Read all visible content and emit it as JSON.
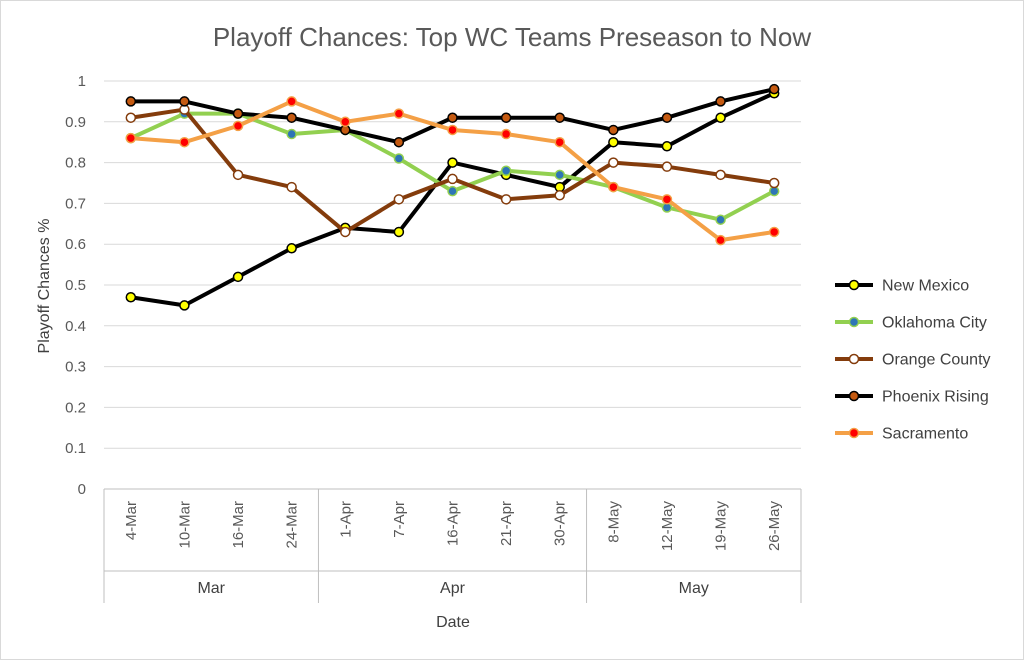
{
  "chart_data": {
    "type": "line",
    "title": "Playoff Chances: Top WC Teams Preseason to Now",
    "xlabel": "Date",
    "ylabel": "Playoff Chances %",
    "ylim": [
      0,
      1
    ],
    "yticks": [
      "0",
      "0.1",
      "0.2",
      "0.3",
      "0.4",
      "0.5",
      "0.6",
      "0.7",
      "0.8",
      "0.9",
      "1"
    ],
    "categories": [
      "4-Mar",
      "10-Mar",
      "16-Mar",
      "24-Mar",
      "1-Apr",
      "7-Apr",
      "16-Apr",
      "21-Apr",
      "30-Apr",
      "8-May",
      "12-May",
      "19-May",
      "26-May"
    ],
    "groups": [
      {
        "label": "Mar",
        "count": 4
      },
      {
        "label": "Apr",
        "count": 5
      },
      {
        "label": "May",
        "count": 4
      }
    ],
    "grid": true,
    "legend_position": "right",
    "series": [
      {
        "name": "New Mexico",
        "color": "#000000",
        "marker_fill": "#ffff00",
        "marker_stroke": "#000000",
        "values": [
          0.47,
          0.45,
          0.52,
          0.59,
          0.64,
          0.63,
          0.8,
          0.77,
          0.74,
          0.85,
          0.84,
          0.91,
          0.97
        ]
      },
      {
        "name": "Oklahoma City",
        "color": "#92d050",
        "marker_fill": "#2e75b6",
        "marker_stroke": "#92d050",
        "values": [
          0.86,
          0.92,
          0.92,
          0.87,
          0.88,
          0.81,
          0.73,
          0.78,
          0.77,
          0.74,
          0.69,
          0.66,
          0.73
        ]
      },
      {
        "name": "Orange County",
        "color": "#843c0c",
        "marker_fill": "#ffffff",
        "marker_stroke": "#843c0c",
        "values": [
          0.91,
          0.93,
          0.77,
          0.74,
          0.63,
          0.71,
          0.76,
          0.71,
          0.72,
          0.8,
          0.79,
          0.77,
          0.75
        ]
      },
      {
        "name": "Phoenix Rising",
        "color": "#000000",
        "marker_fill": "#c55a11",
        "marker_stroke": "#000000",
        "values": [
          0.95,
          0.95,
          0.92,
          0.91,
          0.88,
          0.85,
          0.91,
          0.91,
          0.91,
          0.88,
          0.91,
          0.95,
          0.98
        ]
      },
      {
        "name": "Sacramento",
        "color": "#f4a046",
        "marker_fill": "#ff0000",
        "marker_stroke": "#f4a046",
        "values": [
          0.86,
          0.85,
          0.89,
          0.95,
          0.9,
          0.92,
          0.88,
          0.87,
          0.85,
          0.74,
          0.71,
          0.61,
          0.63
        ]
      }
    ]
  }
}
